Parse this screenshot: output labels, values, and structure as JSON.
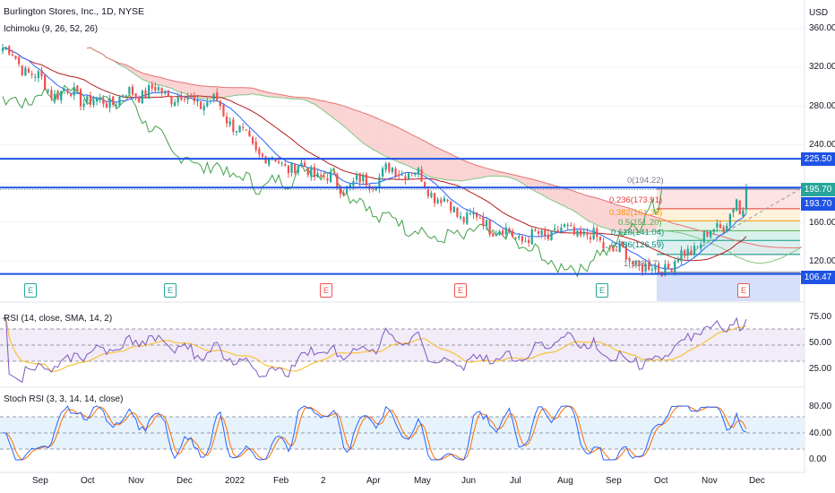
{
  "header": {
    "symbol": "Burlington Stores, Inc., 1D, NYSE",
    "ichimoku_label": "Ichimoku (9, 26, 52, 26)",
    "currency": "USD"
  },
  "colors": {
    "up": "#26a69a",
    "down": "#ef5350",
    "hline": "#1e53e5",
    "tenkan": "#2962ff",
    "kijun": "#b71c1c",
    "chikou": "#43a047",
    "cloud_red": "#f8c4c4",
    "cloud_green": "#c8e6c9",
    "rsi": "#7e57c2",
    "rsi_ma": "#f9c23c",
    "stoch_k": "#2962ff",
    "stoch_d": "#ff6d00"
  },
  "price_axis": {
    "ticks": [
      "360.00",
      "320.00",
      "280.00",
      "240.00",
      "160.00",
      "120.00"
    ]
  },
  "price_badges": {
    "level_high": "225.50",
    "current": "195.70",
    "previous": "193.70",
    "level_low": "106.47"
  },
  "fib": [
    {
      "label": "0(194.22)"
    },
    {
      "label": "0.236(173.91)"
    },
    {
      "label": "0.382(161.35)"
    },
    {
      "label": "0.5(151.20)"
    },
    {
      "label": "0.618(141.04)"
    },
    {
      "label": "0.786(126.59)"
    },
    {
      "label": "1(108.17)"
    }
  ],
  "earnings_marker": "E",
  "rsi_panel": {
    "label": "RSI (14, close, SMA, 14, 2)",
    "ticks": [
      "75.00",
      "50.00",
      "25.00"
    ]
  },
  "stoch_panel": {
    "label": "Stoch RSI (3, 3, 14, 14, close)",
    "ticks": [
      "80.00",
      "40.00",
      "0.00"
    ]
  },
  "time_axis": [
    "Sep",
    "Oct",
    "Nov",
    "Dec",
    "2022",
    "Feb",
    "2",
    "Apr",
    "May",
    "Jun",
    "Jul",
    "Aug",
    "Sep",
    "Oct",
    "Nov",
    "Dec"
  ],
  "chart_data": {
    "type": "candlestick",
    "title": "Burlington Stores, Inc., 1D, NYSE",
    "ylabel": "USD",
    "price_range": [
      100,
      365
    ],
    "key_levels": [
      225.5,
      195.7,
      106.47
    ],
    "approx_close_path": [
      {
        "x": "Aug",
        "y": 340
      },
      {
        "x": "Sep",
        "y": 318
      },
      {
        "x": "Sep",
        "y": 296
      },
      {
        "x": "Oct",
        "y": 292
      },
      {
        "x": "Oct",
        "y": 282
      },
      {
        "x": "Nov",
        "y": 290
      },
      {
        "x": "Nov",
        "y": 296
      },
      {
        "x": "Dec",
        "y": 292
      },
      {
        "x": "Dec",
        "y": 285
      },
      {
        "x": "2022",
        "y": 282
      },
      {
        "x": "2022",
        "y": 248
      },
      {
        "x": "Feb",
        "y": 226
      },
      {
        "x": "Feb",
        "y": 218
      },
      {
        "x": "2",
        "y": 212
      },
      {
        "x": "2",
        "y": 198
      },
      {
        "x": "Apr",
        "y": 200
      },
      {
        "x": "Apr",
        "y": 212
      },
      {
        "x": "May",
        "y": 215
      },
      {
        "x": "May",
        "y": 190
      },
      {
        "x": "Jun",
        "y": 168
      },
      {
        "x": "Jun",
        "y": 162
      },
      {
        "x": "Jul",
        "y": 148
      },
      {
        "x": "Jul",
        "y": 142
      },
      {
        "x": "Aug",
        "y": 150
      },
      {
        "x": "Aug",
        "y": 150
      },
      {
        "x": "Sep",
        "y": 138
      },
      {
        "x": "Sep",
        "y": 124
      },
      {
        "x": "Oct",
        "y": 110
      },
      {
        "x": "Oct",
        "y": 118
      },
      {
        "x": "Nov",
        "y": 138
      },
      {
        "x": "Nov",
        "y": 158
      },
      {
        "x": "Nov",
        "y": 195.7
      }
    ]
  }
}
